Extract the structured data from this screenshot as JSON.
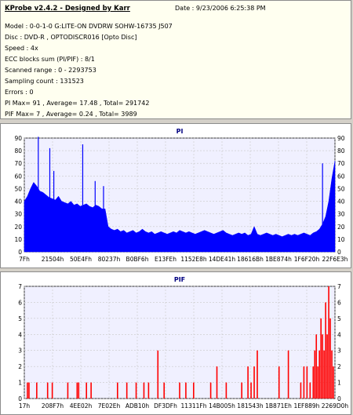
{
  "info": {
    "title": "KProbe v2.4.2 - Designed by Karr",
    "date": "Date : 9/23/2006 6:25:38 PM",
    "lines": [
      "Model : 0-0-1-0 G:LITE-ON DVDRW SOHW-16735 J507",
      "Disc : DVD-R , OPTODISCR016 [Opto Disc]",
      "Speed : 4x",
      "ECC blocks sum (PI/PIF) : 8/1",
      "Scanned range : 0 - 2293753",
      "Sampling count : 131523",
      "Errors : 0",
      "PI Max= 91 , Average= 17.48 , Total= 291742",
      "PIF Max= 7 , Average= 0.24 , Total= 3989"
    ]
  },
  "chart_data": [
    {
      "type": "area",
      "title": "PI",
      "ylim": [
        0,
        90
      ],
      "yticks": [
        0,
        10,
        20,
        30,
        40,
        50,
        60,
        70,
        80,
        90
      ],
      "xtick_labels": [
        "7Fh",
        "21504h",
        "50E4Fh",
        "80237h",
        "B0BF6h",
        "E13FEh",
        "1152E8h",
        "14DE41h",
        "18616Bh",
        "1BE874h",
        "1F6F20h",
        "22F6E3h"
      ],
      "grid": true,
      "color": "#0000ff",
      "x": [
        0,
        0.01,
        0.02,
        0.03,
        0.04,
        0.05,
        0.06,
        0.07,
        0.08,
        0.09,
        0.1,
        0.11,
        0.12,
        0.13,
        0.14,
        0.15,
        0.16,
        0.17,
        0.18,
        0.19,
        0.2,
        0.21,
        0.22,
        0.23,
        0.24,
        0.25,
        0.26,
        0.27,
        0.28,
        0.29,
        0.3,
        0.31,
        0.32,
        0.33,
        0.34,
        0.35,
        0.36,
        0.37,
        0.38,
        0.39,
        0.4,
        0.41,
        0.42,
        0.43,
        0.44,
        0.45,
        0.46,
        0.47,
        0.48,
        0.49,
        0.5,
        0.51,
        0.52,
        0.53,
        0.54,
        0.55,
        0.56,
        0.57,
        0.58,
        0.59,
        0.6,
        0.61,
        0.62,
        0.63,
        0.64,
        0.65,
        0.66,
        0.67,
        0.68,
        0.69,
        0.7,
        0.71,
        0.72,
        0.73,
        0.74,
        0.75,
        0.76,
        0.77,
        0.78,
        0.79,
        0.8,
        0.81,
        0.82,
        0.83,
        0.84,
        0.85,
        0.86,
        0.87,
        0.88,
        0.89,
        0.9,
        0.91,
        0.92,
        0.93,
        0.94,
        0.95,
        0.96,
        0.97,
        0.98,
        0.99,
        1.0
      ],
      "values": [
        40,
        44,
        50,
        55,
        52,
        48,
        47,
        45,
        43,
        42,
        41,
        44,
        40,
        39,
        38,
        40,
        37,
        38,
        36,
        37,
        38,
        36,
        35,
        37,
        36,
        34,
        34,
        20,
        18,
        17,
        18,
        16,
        17,
        15,
        16,
        17,
        15,
        16,
        18,
        16,
        15,
        16,
        14,
        15,
        16,
        15,
        14,
        15,
        16,
        15,
        17,
        16,
        15,
        16,
        15,
        14,
        15,
        16,
        17,
        16,
        15,
        14,
        15,
        16,
        17,
        15,
        14,
        13,
        14,
        15,
        14,
        15,
        13,
        14,
        20,
        14,
        13,
        14,
        15,
        14,
        13,
        14,
        13,
        12,
        13,
        14,
        13,
        14,
        13,
        14,
        15,
        14,
        13,
        15,
        16,
        18,
        22,
        28,
        40,
        58,
        72
      ],
      "spikes": [
        [
          0.045,
          91
        ],
        [
          0.082,
          82
        ],
        [
          0.095,
          64
        ],
        [
          0.188,
          85
        ],
        [
          0.228,
          56
        ],
        [
          0.255,
          52
        ],
        [
          0.96,
          70
        ]
      ]
    },
    {
      "type": "bar",
      "title": "PIF",
      "ylim": [
        0,
        7
      ],
      "yticks": [
        0,
        1,
        2,
        3,
        4,
        5,
        6,
        7
      ],
      "xtick_labels": [
        "17h",
        "208F7h",
        "4EE02h",
        "7E02Eh",
        "ADB10h",
        "DF3DFh",
        "11311Fh",
        "14B005h",
        "181543h",
        "1B871Eh",
        "1EF889h",
        "2269D0h"
      ],
      "grid": true,
      "color": "#ff0000",
      "x": [
        0.01,
        0.015,
        0.04,
        0.075,
        0.09,
        0.14,
        0.17,
        0.175,
        0.2,
        0.215,
        0.3,
        0.33,
        0.36,
        0.385,
        0.4,
        0.43,
        0.45,
        0.5,
        0.52,
        0.545,
        0.6,
        0.62,
        0.65,
        0.7,
        0.72,
        0.73,
        0.74,
        0.75,
        0.82,
        0.85,
        0.89,
        0.9,
        0.91,
        0.92,
        0.93,
        0.935,
        0.94,
        0.945,
        0.95,
        0.955,
        0.96,
        0.965,
        0.97,
        0.975,
        0.98,
        0.985,
        0.99,
        0.995
      ],
      "values": [
        1,
        1,
        1,
        1,
        1,
        1,
        1,
        1,
        1,
        1,
        1,
        1,
        1,
        1,
        1,
        3,
        1,
        1,
        1,
        1,
        1,
        2,
        1,
        1,
        2,
        1,
        2,
        3,
        2,
        3,
        1,
        2,
        2,
        1,
        2,
        3,
        4,
        2,
        3,
        5,
        4,
        3,
        6,
        4,
        7,
        5,
        3,
        2
      ]
    }
  ]
}
